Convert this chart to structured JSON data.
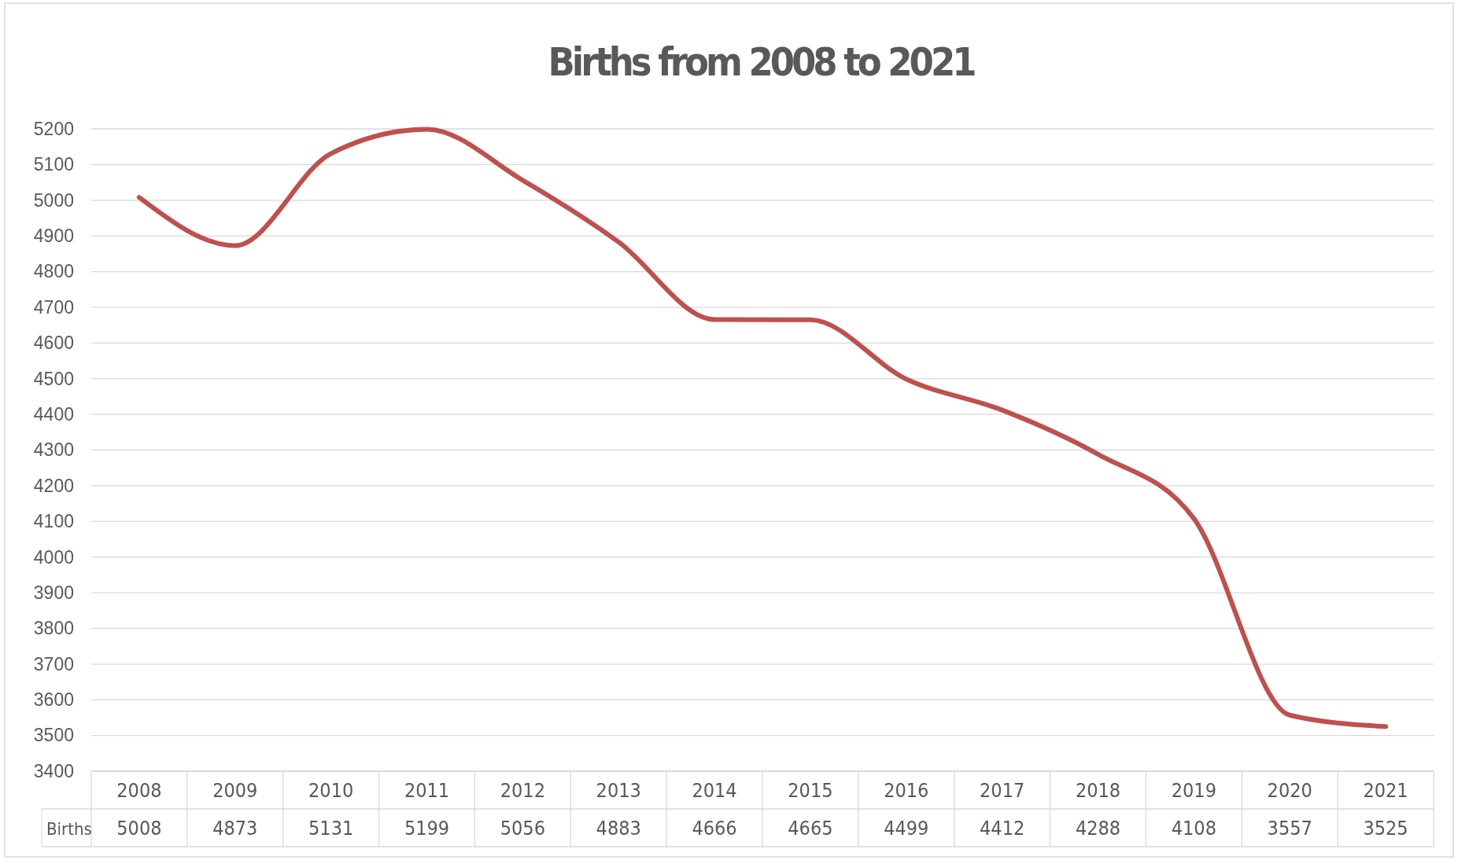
{
  "chart_data": {
    "type": "line",
    "title": "Births from 2008 to 2021",
    "categories": [
      "2008",
      "2009",
      "2010",
      "2011",
      "2012",
      "2013",
      "2014",
      "2015",
      "2016",
      "2017",
      "2018",
      "2019",
      "2020",
      "2021"
    ],
    "series": [
      {
        "name": "Births",
        "color": "#c0504d",
        "values": [
          5008,
          4873,
          5131,
          5199,
          5056,
          4883,
          4666,
          4665,
          4499,
          4412,
          4288,
          4108,
          3557,
          3525
        ]
      }
    ],
    "ylim": [
      3400,
      5200
    ],
    "yticks": [
      3400,
      3500,
      3600,
      3700,
      3800,
      3900,
      4000,
      4100,
      4200,
      4300,
      4400,
      4500,
      4600,
      4700,
      4800,
      4900,
      5000,
      5100,
      5200
    ],
    "grid": "y",
    "data_labels": true,
    "legend": false,
    "marker": "none",
    "line_style": "solid"
  }
}
